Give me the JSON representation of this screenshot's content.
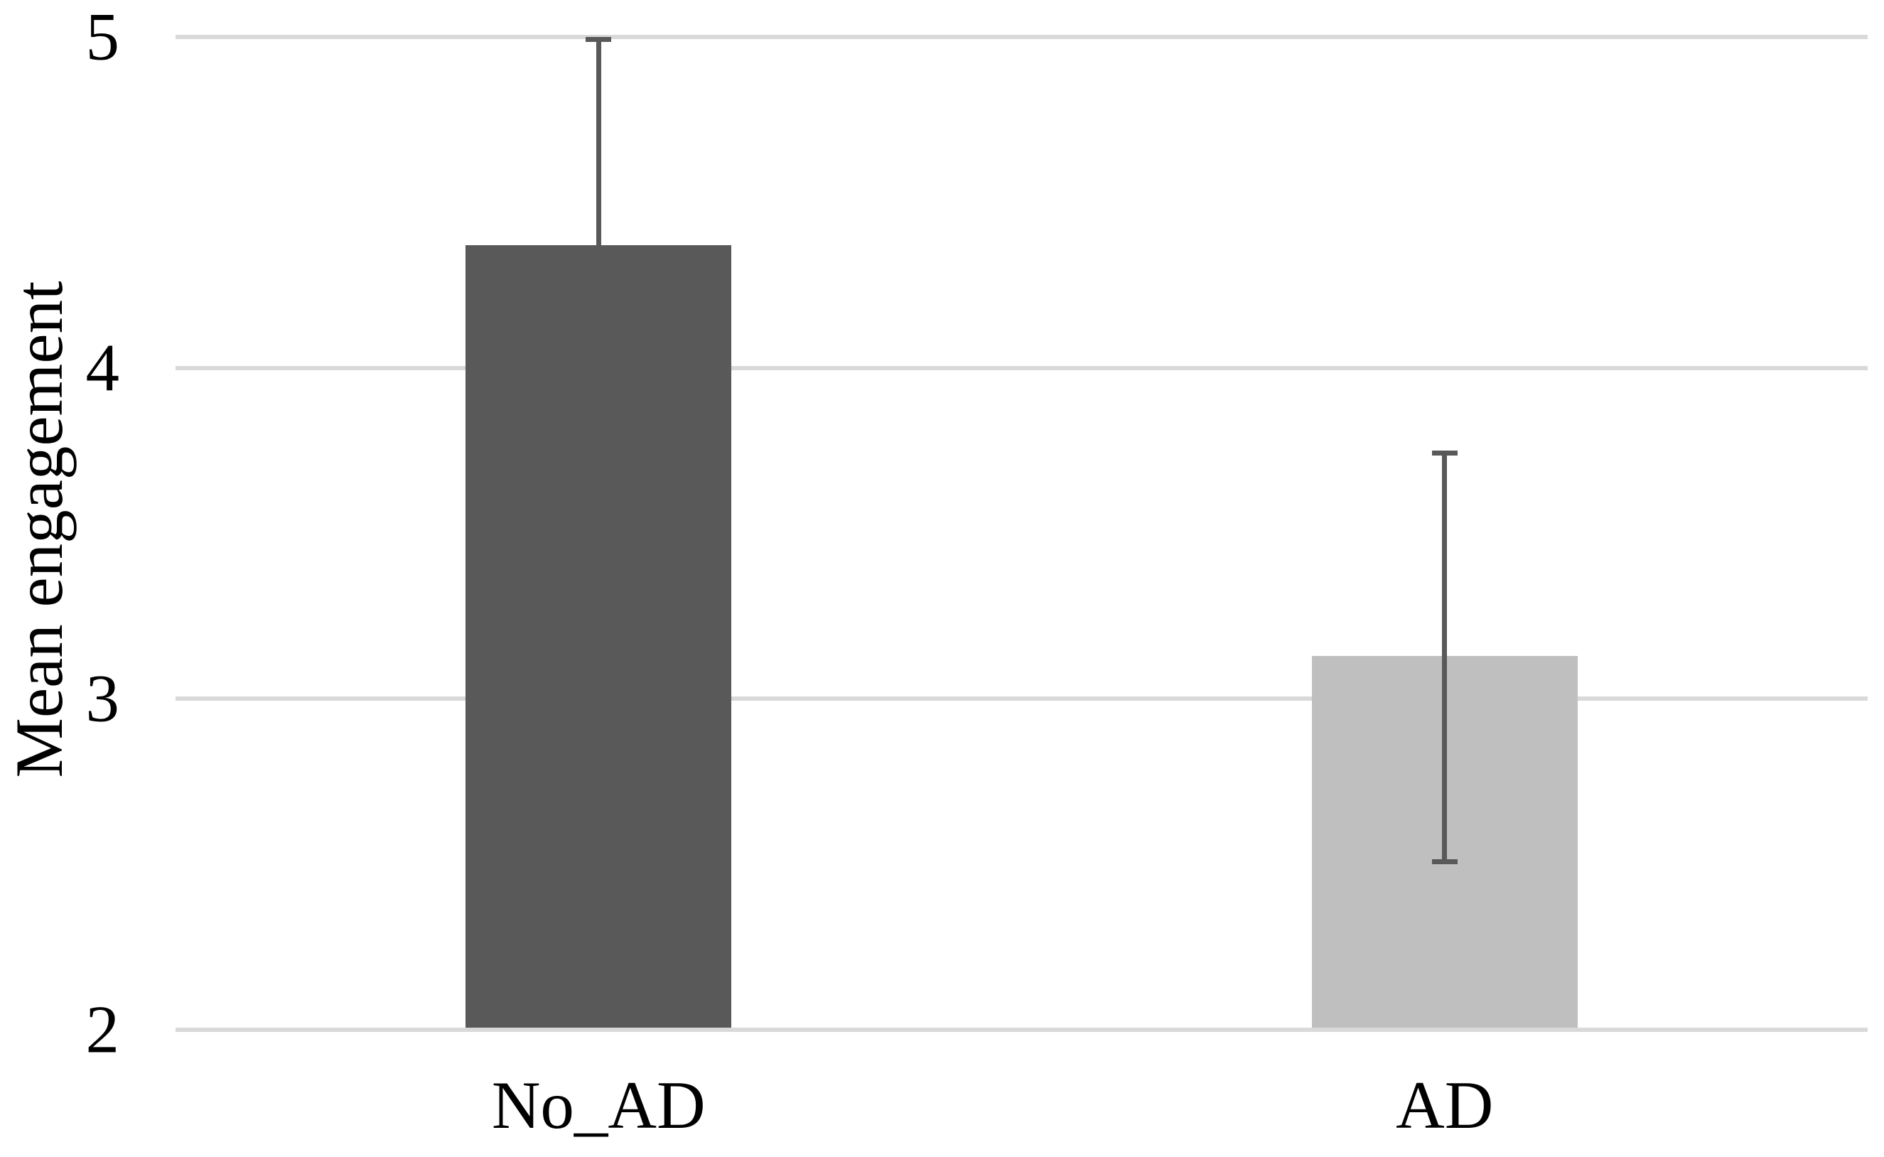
{
  "chart_data": {
    "type": "bar",
    "title": "",
    "xlabel": "",
    "ylabel": "Mean engagement",
    "categories": [
      "No_AD",
      "AD"
    ],
    "values": [
      4.37,
      3.13
    ],
    "error_bars": [
      {
        "upper": 5.0,
        "lower": null
      },
      {
        "upper": 3.75,
        "lower": 2.5
      }
    ],
    "ylim": [
      2,
      5
    ],
    "yticks": [
      2,
      3,
      4,
      5
    ],
    "grid": true,
    "legend": "none",
    "bar_colors": [
      "#595959",
      "#BFBFBF"
    ],
    "gridline_color": "#D9D9D9",
    "error_bar_color": "#595959",
    "text_color": "#000000"
  }
}
